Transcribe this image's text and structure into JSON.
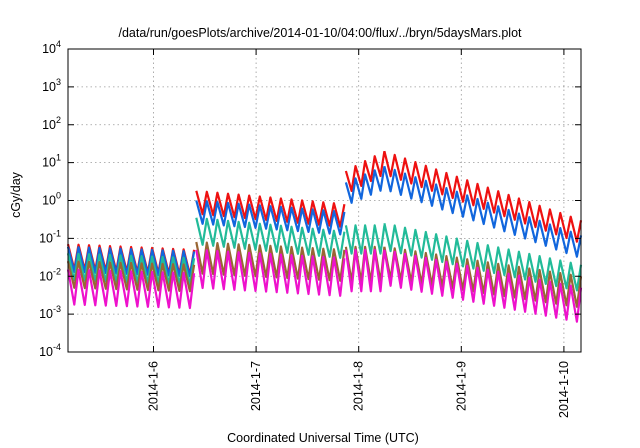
{
  "chart_data": {
    "type": "line",
    "title": "/data/run/goesPlots/archive/2014-01-10/04:00/flux/../bryn/5daysMars.plot",
    "xlabel": "Coordinated Universal Time (UTC)",
    "ylabel": "cGy/day",
    "yscale": "log",
    "ylim": [
      0.0001,
      10000
    ],
    "y_ticks": [
      {
        "value": 0.0001,
        "base": "10",
        "exp": "-4"
      },
      {
        "value": 0.001,
        "base": "10",
        "exp": "-3"
      },
      {
        "value": 0.01,
        "base": "10",
        "exp": "-2"
      },
      {
        "value": 0.1,
        "base": "10",
        "exp": "-1"
      },
      {
        "value": 1,
        "base": "10",
        "exp": "0"
      },
      {
        "value": 10,
        "base": "10",
        "exp": "1"
      },
      {
        "value": 100,
        "base": "10",
        "exp": "2"
      },
      {
        "value": 1000,
        "base": "10",
        "exp": "3"
      },
      {
        "value": 10000,
        "base": "10",
        "exp": "4"
      }
    ],
    "xlim": [
      "2014-01-05 04:00",
      "2014-01-10 04:00"
    ],
    "x_ticks": [
      "2014-1-6",
      "2014-1-7",
      "2014-1-8",
      "2014-1-9",
      "2014-1-10"
    ],
    "grid": true,
    "sawtooth_period_hours": 2.4,
    "series": [
      {
        "color": "#ee1111",
        "segments": [
          {
            "x": [
              "2014-01-05 04:00",
              "2014-01-06 09:30"
            ],
            "peak": [
              0.07,
              0.05
            ],
            "trough_ratio": 0.22
          },
          {
            "x": [
              "2014-01-06 10:00",
              "2014-01-07 20:40"
            ],
            "peak": [
              1.8,
              0.8
            ],
            "trough_ratio": 0.25
          },
          {
            "x": [
              "2014-01-07 21:00",
              "2014-01-08 06:00"
            ],
            "peak": [
              6,
              20
            ],
            "trough_ratio": 0.25
          },
          {
            "x": [
              "2014-01-08 06:00",
              "2014-01-10 04:00"
            ],
            "peak": [
              20,
              0.3
            ],
            "trough_ratio": 0.25
          }
        ]
      },
      {
        "color": "#1166dd",
        "segments": [
          {
            "x": [
              "2014-01-05 04:00",
              "2014-01-06 09:30"
            ],
            "peak": [
              0.06,
              0.045
            ],
            "trough_ratio": 0.22
          },
          {
            "x": [
              "2014-01-06 10:00",
              "2014-01-07 20:40"
            ],
            "peak": [
              1.0,
              0.5
            ],
            "trough_ratio": 0.25
          },
          {
            "x": [
              "2014-01-07 21:00",
              "2014-01-08 06:00"
            ],
            "peak": [
              3,
              8
            ],
            "trough_ratio": 0.25
          },
          {
            "x": [
              "2014-01-08 06:00",
              "2014-01-10 04:00"
            ],
            "peak": [
              8,
              0.12
            ],
            "trough_ratio": 0.25
          }
        ]
      },
      {
        "color": "#22bb99",
        "segments": [
          {
            "x": [
              "2014-01-05 04:00",
              "2014-01-06 09:30"
            ],
            "peak": [
              0.04,
              0.03
            ],
            "trough_ratio": 0.2
          },
          {
            "x": [
              "2014-01-06 10:00",
              "2014-01-07 20:40"
            ],
            "peak": [
              0.35,
              0.15
            ],
            "trough_ratio": 0.2
          },
          {
            "x": [
              "2014-01-07 21:00",
              "2014-01-08 06:00"
            ],
            "peak": [
              0.22,
              0.22
            ],
            "trough_ratio": 0.18
          },
          {
            "x": [
              "2014-01-08 06:00",
              "2014-01-10 04:00"
            ],
            "peak": [
              0.25,
              0.02
            ],
            "trough_ratio": 0.2
          }
        ]
      },
      {
        "color": "#996633",
        "segments": [
          {
            "x": [
              "2014-01-05 04:00",
              "2014-01-06 09:30"
            ],
            "peak": [
              0.025,
              0.02
            ],
            "trough_ratio": 0.2
          },
          {
            "x": [
              "2014-01-06 10:00",
              "2014-01-07 20:40"
            ],
            "peak": [
              0.08,
              0.05
            ],
            "trough_ratio": 0.15
          },
          {
            "x": [
              "2014-01-07 21:00",
              "2014-01-08 06:00"
            ],
            "peak": [
              0.06,
              0.06
            ],
            "trough_ratio": 0.12
          },
          {
            "x": [
              "2014-01-08 06:00",
              "2014-01-10 04:00"
            ],
            "peak": [
              0.06,
              0.01
            ],
            "trough_ratio": 0.15
          }
        ]
      },
      {
        "color": "#ee11cc",
        "segments": [
          {
            "x": [
              "2014-01-05 04:00",
              "2014-01-06 09:30"
            ],
            "peak": [
              0.015,
              0.012
            ],
            "trough_ratio": 0.12
          },
          {
            "x": [
              "2014-01-06 10:00",
              "2014-01-07 20:40"
            ],
            "peak": [
              0.05,
              0.03
            ],
            "trough_ratio": 0.1
          },
          {
            "x": [
              "2014-01-07 21:00",
              "2014-01-08 06:00"
            ],
            "peak": [
              0.05,
              0.05
            ],
            "trough_ratio": 0.08
          },
          {
            "x": [
              "2014-01-08 06:00",
              "2014-01-10 04:00"
            ],
            "peak": [
              0.05,
              0.005
            ],
            "trough_ratio": 0.12
          }
        ]
      }
    ]
  }
}
